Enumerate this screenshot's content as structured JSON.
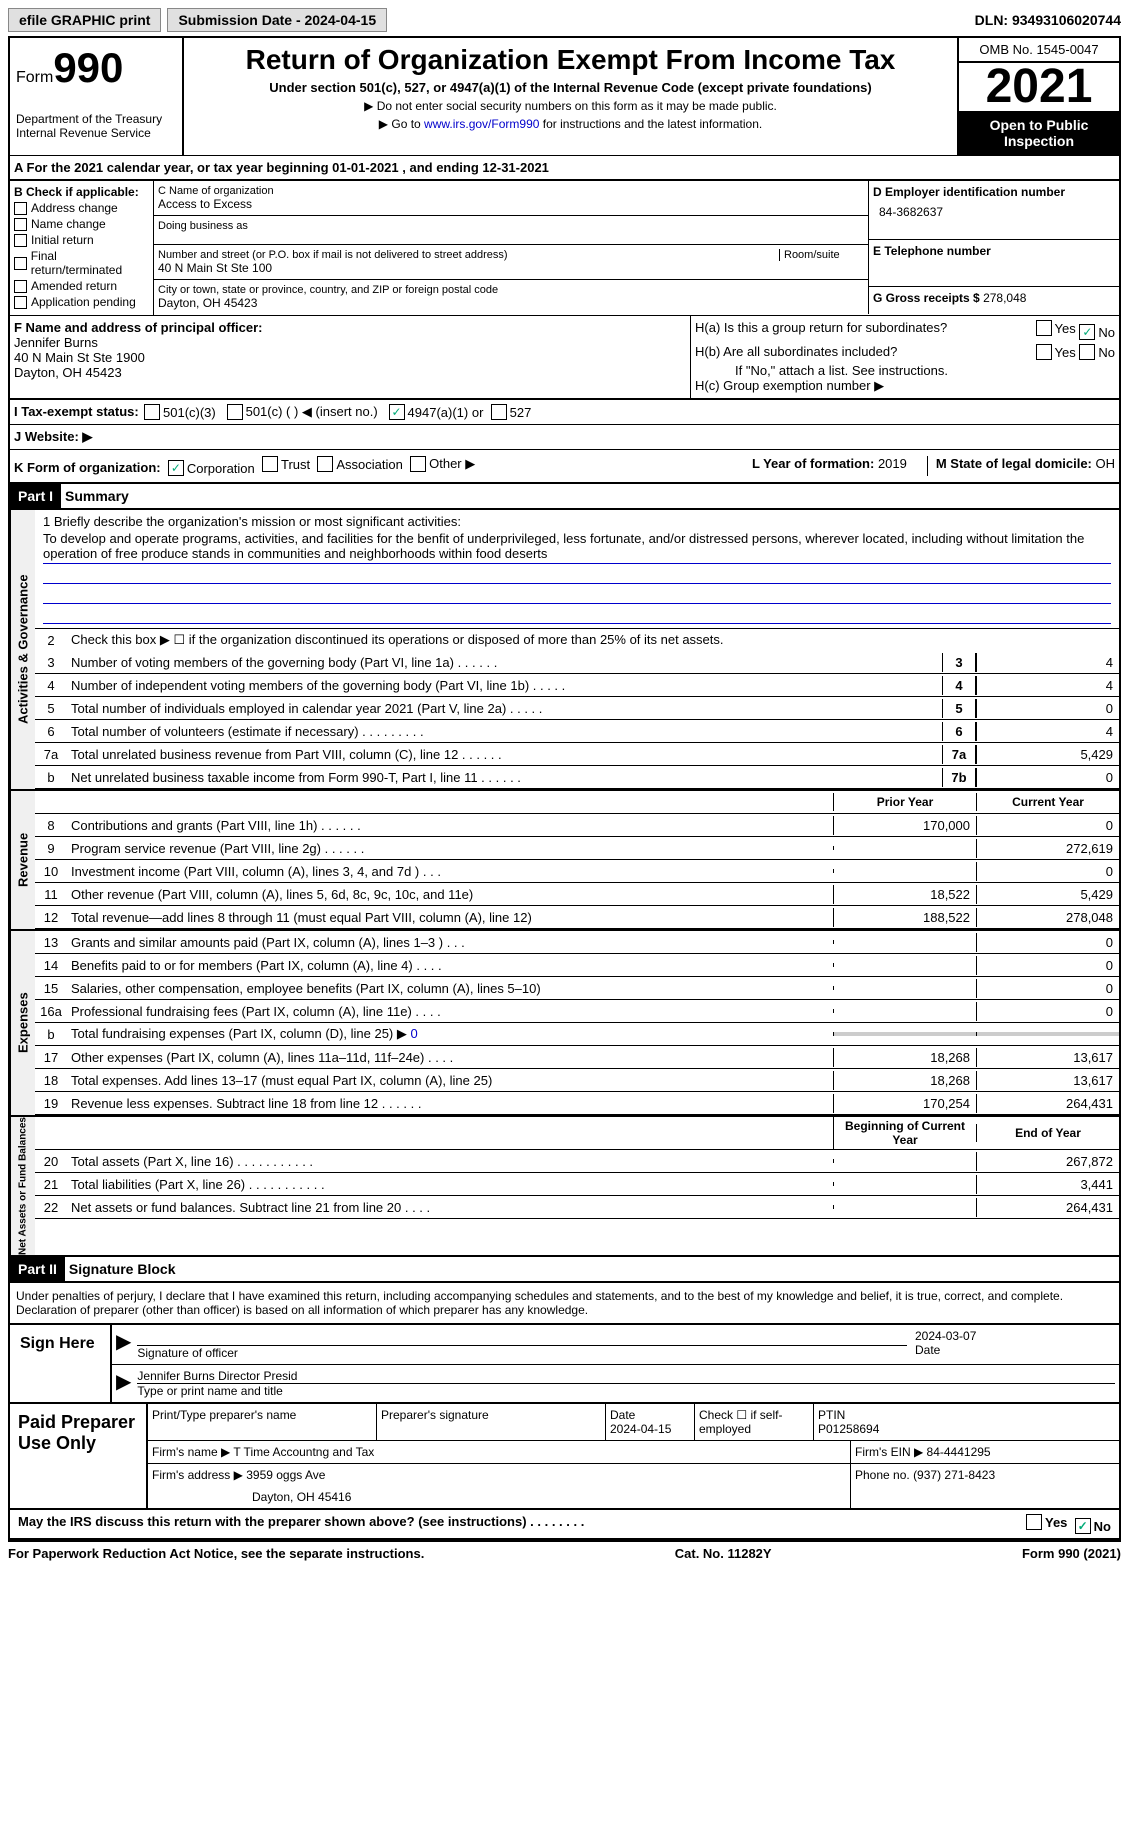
{
  "topbar": {
    "efile": "efile GRAPHIC print",
    "sub_date_label": "Submission Date - 2024-04-15",
    "dln": "DLN: 93493106020744"
  },
  "header": {
    "form_word": "Form",
    "form_num": "990",
    "dept": "Department of the Treasury",
    "irs": "Internal Revenue Service",
    "title": "Return of Organization Exempt From Income Tax",
    "subtitle": "Under section 501(c), 527, or 4947(a)(1) of the Internal Revenue Code (except private foundations)",
    "note1": "▶ Do not enter social security numbers on this form as it may be made public.",
    "note2": "▶ Go to ",
    "link": "www.irs.gov/Form990",
    "note2b": " for instructions and the latest information.",
    "omb": "OMB No. 1545-0047",
    "year": "2021",
    "public": "Open to Public Inspection"
  },
  "row_a": "A For the 2021 calendar year, or tax year beginning 01-01-2021    , and ending 12-31-2021",
  "box_b": {
    "label": "B Check if applicable:",
    "opts": [
      "Address change",
      "Name change",
      "Initial return",
      "Final return/terminated",
      "Amended return",
      "Application pending"
    ]
  },
  "box_c": {
    "name_label": "C Name of organization",
    "name": "Access to Excess",
    "dba_label": "Doing business as",
    "street_label": "Number and street (or P.O. box if mail is not delivered to street address)",
    "room_label": "Room/suite",
    "street": "40 N Main St Ste 100",
    "city_label": "City or town, state or province, country, and ZIP or foreign postal code",
    "city": "Dayton, OH  45423"
  },
  "box_d": {
    "label": "D Employer identification number",
    "ein": "84-3682637"
  },
  "box_e": {
    "label": "E Telephone number",
    "phone": ""
  },
  "box_g": {
    "label": "G Gross receipts $",
    "amount": "278,048"
  },
  "box_f": {
    "label": "F  Name and address of principal officer:",
    "name": "Jennifer Burns",
    "addr1": "40 N Main St Ste 1900",
    "addr2": "Dayton, OH  45423"
  },
  "box_h": {
    "ha": "H(a)  Is this a group return for subordinates?",
    "hb": "H(b)  Are all subordinates included?",
    "hb_note": "If \"No,\" attach a list. See instructions.",
    "hc": "H(c)  Group exemption number ▶",
    "yes": "Yes",
    "no": "No"
  },
  "row_i": {
    "label": "I     Tax-exempt status:",
    "o1": "501(c)(3)",
    "o2": "501(c) (  ) ◀ (insert no.)",
    "o3": "4947(a)(1) or",
    "o4": "527"
  },
  "row_j": {
    "label": "J    Website: ▶"
  },
  "row_k": {
    "label": "K Form of organization:",
    "opts": [
      "Corporation",
      "Trust",
      "Association",
      "Other ▶"
    ],
    "l_label": "L Year of formation: ",
    "l_val": "2019",
    "m_label": "M State of legal domicile: ",
    "m_val": "OH"
  },
  "part1": {
    "hdr": "Part I",
    "title": "Summary"
  },
  "mission": {
    "label": "1   Briefly describe the organization's mission or most significant activities:",
    "text": "To develop and operate programs, activities, and facilities for the benfit of underprivileged, less fortunate, and/or distressed persons, wherever located, including without limitation the operation of free produce stands in communities and neighborhoods within food deserts"
  },
  "line2": "Check this box ▶ ☐  if the organization discontinued its operations or disposed of more than 25% of its net assets.",
  "sides": {
    "gov": "Activities & Governance",
    "rev": "Revenue",
    "exp": "Expenses",
    "net": "Net Assets or Fund Balances"
  },
  "hdrs": {
    "prior": "Prior Year",
    "current": "Current Year",
    "begin": "Beginning of Current Year",
    "end": "End of Year"
  },
  "gov_lines": [
    {
      "n": "3",
      "t": "Number of voting members of the governing body (Part VI, line 1a)  .     .     .     .     .     .",
      "box": "3",
      "v": "4"
    },
    {
      "n": "4",
      "t": "Number of independent voting members of the governing body (Part VI, line 1b)  .     .     .     .     .",
      "box": "4",
      "v": "4"
    },
    {
      "n": "5",
      "t": "Total number of individuals employed in calendar year 2021 (Part V, line 2a)  .     .     .     .     .",
      "box": "5",
      "v": "0"
    },
    {
      "n": "6",
      "t": "Total number of volunteers (estimate if necessary)    .     .     .     .     .     .     .     .     .",
      "box": "6",
      "v": "4"
    },
    {
      "n": "7a",
      "t": "Total unrelated business revenue from Part VIII, column (C), line 12   .     .     .     .     .     .",
      "box": "7a",
      "v": "5,429"
    },
    {
      "n": "b",
      "t": "Net unrelated business taxable income from Form 990-T, Part I, line 11  .     .     .     .     .     .",
      "box": "7b",
      "v": "0"
    }
  ],
  "rev_lines": [
    {
      "n": "8",
      "t": "Contributions and grants (Part VIII, line 1h)   .     .     .     .     .     .",
      "p": "170,000",
      "c": "0"
    },
    {
      "n": "9",
      "t": "Program service revenue (Part VIII, line 2g)    .     .     .     .     .     .",
      "p": "",
      "c": "272,619"
    },
    {
      "n": "10",
      "t": "Investment income (Part VIII, column (A), lines 3, 4, and 7d )   .     .     .",
      "p": "",
      "c": "0"
    },
    {
      "n": "11",
      "t": "Other revenue (Part VIII, column (A), lines 5, 6d, 8c, 9c, 10c, and 11e)",
      "p": "18,522",
      "c": "5,429"
    },
    {
      "n": "12",
      "t": "Total revenue—add lines 8 through 11 (must equal Part VIII, column (A), line 12)",
      "p": "188,522",
      "c": "278,048"
    }
  ],
  "exp_lines": [
    {
      "n": "13",
      "t": "Grants and similar amounts paid (Part IX, column (A), lines 1–3 )  .     .     .",
      "p": "",
      "c": "0"
    },
    {
      "n": "14",
      "t": "Benefits paid to or for members (Part IX, column (A), line 4)  .     .     .     .",
      "p": "",
      "c": "0"
    },
    {
      "n": "15",
      "t": "Salaries, other compensation, employee benefits (Part IX, column (A), lines 5–10)",
      "p": "",
      "c": "0"
    },
    {
      "n": "16a",
      "t": "Professional fundraising fees (Part IX, column (A), line 11e)  .     .     .     .",
      "p": "",
      "c": "0"
    },
    {
      "n": "b",
      "t": "Total fundraising expenses (Part IX, column (D), line 25) ▶",
      "p": "gray",
      "c": "gray",
      "link": "0"
    },
    {
      "n": "17",
      "t": "Other expenses (Part IX, column (A), lines 11a–11d, 11f–24e)   .     .     .     .",
      "p": "18,268",
      "c": "13,617"
    },
    {
      "n": "18",
      "t": "Total expenses. Add lines 13–17 (must equal Part IX, column (A), line 25)",
      "p": "18,268",
      "c": "13,617"
    },
    {
      "n": "19",
      "t": "Revenue less expenses. Subtract line 18 from line 12  .     .     .     .     .     .",
      "p": "170,254",
      "c": "264,431"
    }
  ],
  "net_lines": [
    {
      "n": "20",
      "t": "Total assets (Part X, line 16)  .     .     .     .     .     .     .     .     .     .     .",
      "p": "",
      "c": "267,872"
    },
    {
      "n": "21",
      "t": "Total liabilities (Part X, line 26)  .     .     .     .     .     .     .     .     .     .     .",
      "p": "",
      "c": "3,441"
    },
    {
      "n": "22",
      "t": "Net assets or fund balances. Subtract line 21 from line 20   .     .     .     .",
      "p": "",
      "c": "264,431"
    }
  ],
  "part2": {
    "hdr": "Part II",
    "title": "Signature Block"
  },
  "sig": {
    "intro": "Under penalties of perjury, I declare that I have examined this return, including accompanying schedules and statements, and to the best of my knowledge and belief, it is true, correct, and complete. Declaration of preparer (other than officer) is based on all information of which preparer has any knowledge.",
    "sign_here": "Sign Here",
    "sig_officer": "Signature of officer",
    "date": "2024-03-07",
    "date_lbl": "Date",
    "printed": "Jennifer Burns  Director Presid",
    "printed_lbl": "Type or print name and title"
  },
  "prep": {
    "hdr": "Paid Preparer Use Only",
    "c1": "Print/Type preparer's name",
    "c2": "Preparer's signature",
    "c3": "Date",
    "c3v": "2024-04-15",
    "c4": "Check ☐ if self-employed",
    "c5": "PTIN",
    "c5v": "P01258694",
    "firm_lbl": "Firm's name     ▶",
    "firm": "T Time Accountng and Tax",
    "ein_lbl": "Firm's EIN ▶",
    "ein": "84-4441295",
    "addr_lbl": "Firm's address ▶",
    "addr": "3959 oggs Ave",
    "addr2": "Dayton, OH  45416",
    "phone_lbl": "Phone no.",
    "phone": "(937) 271-8423"
  },
  "last": {
    "q": "May the IRS discuss this return with the preparer shown above? (see instructions)   .     .     .     .     .     .     .     .",
    "yes": "Yes",
    "no": "No"
  },
  "footer": {
    "l": "For Paperwork Reduction Act Notice, see the separate instructions.",
    "c": "Cat. No. 11282Y",
    "r": "Form 990 (2021)"
  }
}
